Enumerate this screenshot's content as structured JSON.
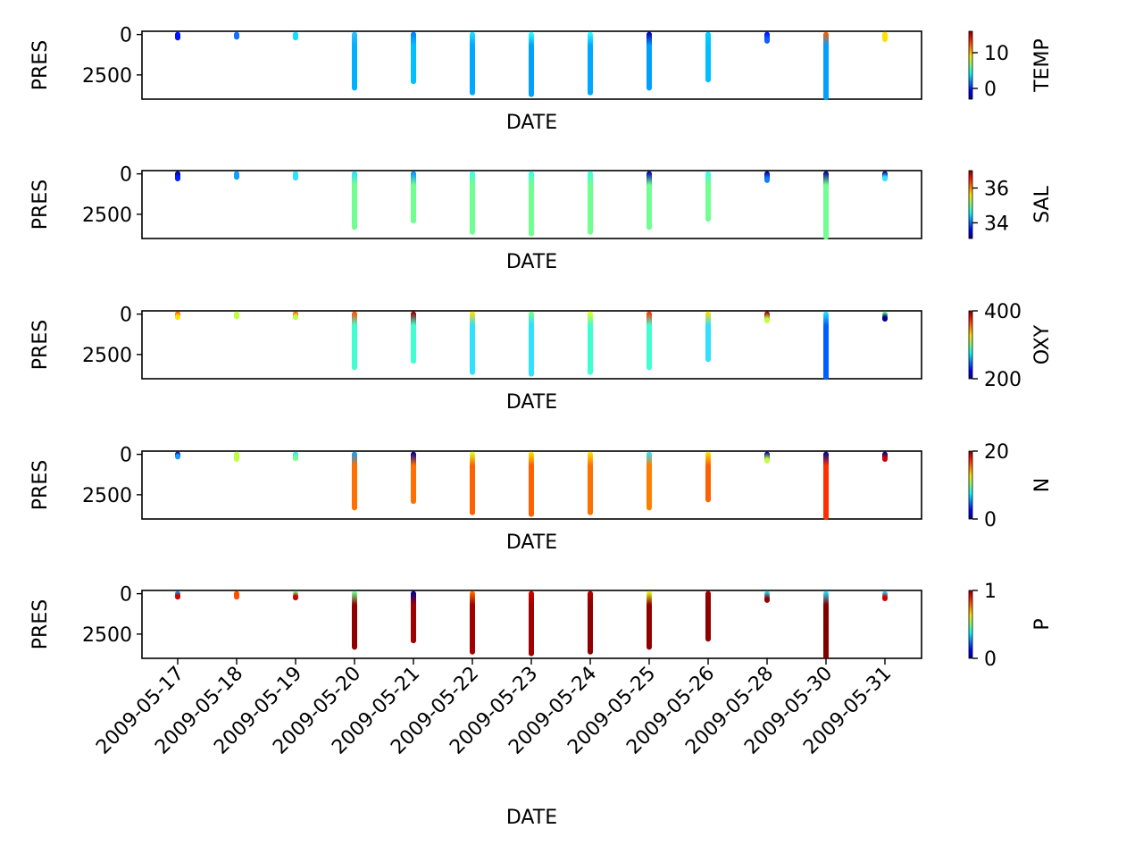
{
  "chart_data": {
    "type": "scatter",
    "shared_x": {
      "label": "DATE",
      "categories": [
        "2009-05-17",
        "2009-05-18",
        "2009-05-19",
        "2009-05-20",
        "2009-05-21",
        "2009-05-22",
        "2009-05-23",
        "2009-05-24",
        "2009-05-25",
        "2009-05-26",
        "2009-05-28",
        "2009-05-30",
        "2009-05-31"
      ]
    },
    "panels": [
      {
        "id": "temp",
        "xlabel": "DATE",
        "ylabel": "PRES",
        "yticks": [
          0,
          2500
        ],
        "ylim": [
          4000,
          -200
        ],
        "color_variable": "TEMP",
        "colorbar_label": "TEMP",
        "colorbar_ticks": [
          0,
          10
        ],
        "colorbar_range": [
          -3,
          16
        ],
        "colormap": "jet",
        "casts": [
          {
            "date": "2009-05-17",
            "max_pres": 200,
            "color_top": "#0010ff",
            "color_deep": "#0010ff"
          },
          {
            "date": "2009-05-18",
            "max_pres": 150,
            "color_top": "#1070ff",
            "color_deep": "#1070ff"
          },
          {
            "date": "2009-05-19",
            "max_pres": 200,
            "color_top": "#10e0ff",
            "color_deep": "#10e0ff"
          },
          {
            "date": "2009-05-20",
            "max_pres": 3300,
            "color_top": "#30c0ff",
            "color_deep": "#00b0ff"
          },
          {
            "date": "2009-05-21",
            "max_pres": 2900,
            "color_top": "#0080ff",
            "color_deep": "#00c0ff"
          },
          {
            "date": "2009-05-22",
            "max_pres": 3600,
            "color_top": "#20e0ff",
            "color_deep": "#00a8ff"
          },
          {
            "date": "2009-05-23",
            "max_pres": 3700,
            "color_top": "#30ffff",
            "color_deep": "#00a0ff"
          },
          {
            "date": "2009-05-24",
            "max_pres": 3600,
            "color_top": "#30ffff",
            "color_deep": "#00a8ff"
          },
          {
            "date": "2009-05-25",
            "max_pres": 3300,
            "color_top": "#0000b0",
            "color_deep": "#00a0ff"
          },
          {
            "date": "2009-05-26",
            "max_pres": 2800,
            "color_top": "#00d0ff",
            "color_deep": "#00c0ff"
          },
          {
            "date": "2009-05-28",
            "max_pres": 400,
            "color_top": "#0010ff",
            "color_deep": "#1060ff"
          },
          {
            "date": "2009-05-30",
            "max_pres": 3900,
            "color_top": "#ff6000",
            "color_deep": "#00a0ff"
          },
          {
            "date": "2009-05-31",
            "max_pres": 300,
            "color_top": "#ffe000",
            "color_deep": "#ffe000"
          }
        ]
      },
      {
        "id": "sal",
        "xlabel": "DATE",
        "ylabel": "PRES",
        "yticks": [
          0,
          2500
        ],
        "ylim": [
          4000,
          -200
        ],
        "color_variable": "SAL",
        "colorbar_label": "SAL",
        "colorbar_ticks": [
          34,
          36
        ],
        "colorbar_range": [
          33.1,
          37.0
        ],
        "colormap": "jet",
        "casts": [
          {
            "date": "2009-05-17",
            "max_pres": 300,
            "color_top": "#000090",
            "color_deep": "#0020ff"
          },
          {
            "date": "2009-05-18",
            "max_pres": 200,
            "color_top": "#10a0ff",
            "color_deep": "#10a0ff"
          },
          {
            "date": "2009-05-19",
            "max_pres": 250,
            "color_top": "#30e0ff",
            "color_deep": "#30e0ff"
          },
          {
            "date": "2009-05-20",
            "max_pres": 3300,
            "color_top": "#30e0ff",
            "color_deep": "#70ff90"
          },
          {
            "date": "2009-05-21",
            "max_pres": 2900,
            "color_top": "#0090ff",
            "color_deep": "#70ff90"
          },
          {
            "date": "2009-05-22",
            "max_pres": 3600,
            "color_top": "#40ffe0",
            "color_deep": "#70ff90"
          },
          {
            "date": "2009-05-23",
            "max_pres": 3700,
            "color_top": "#40ffe0",
            "color_deep": "#70ff90"
          },
          {
            "date": "2009-05-24",
            "max_pres": 3600,
            "color_top": "#40ffe0",
            "color_deep": "#70ff90"
          },
          {
            "date": "2009-05-25",
            "max_pres": 3300,
            "color_top": "#0000b0",
            "color_deep": "#70ff90"
          },
          {
            "date": "2009-05-26",
            "max_pres": 2800,
            "color_top": "#40ffe0",
            "color_deep": "#70ff90"
          },
          {
            "date": "2009-05-28",
            "max_pres": 400,
            "color_top": "#000090",
            "color_deep": "#1080ff"
          },
          {
            "date": "2009-05-30",
            "max_pres": 3900,
            "color_top": "#000090",
            "color_deep": "#70ff90"
          },
          {
            "date": "2009-05-31",
            "max_pres": 300,
            "color_top": "#000090",
            "color_deep": "#30e0ff"
          }
        ]
      },
      {
        "id": "oxy",
        "xlabel": "DATE",
        "ylabel": "PRES",
        "yticks": [
          0,
          2500
        ],
        "ylim": [
          4000,
          -200
        ],
        "color_variable": "OXY",
        "colorbar_label": "OXY",
        "colorbar_ticks": [
          200,
          400
        ],
        "colorbar_range": [
          200,
          400
        ],
        "colormap": "jet",
        "casts": [
          {
            "date": "2009-05-17",
            "max_pres": 200,
            "color_top": "#ff5000",
            "color_deep": "#ffe000"
          },
          {
            "date": "2009-05-18",
            "max_pres": 150,
            "color_top": "#c0ff40",
            "color_deep": "#c0ff40"
          },
          {
            "date": "2009-05-19",
            "max_pres": 200,
            "color_top": "#ff5000",
            "color_deep": "#c0ff40"
          },
          {
            "date": "2009-05-20",
            "max_pres": 3300,
            "color_top": "#ff5000",
            "color_deep": "#40ffd0"
          },
          {
            "date": "2009-05-21",
            "max_pres": 2900,
            "color_top": "#900000",
            "color_deep": "#40ffd0"
          },
          {
            "date": "2009-05-22",
            "max_pres": 3600,
            "color_top": "#ffe000",
            "color_deep": "#30e0ff"
          },
          {
            "date": "2009-05-23",
            "max_pres": 3700,
            "color_top": "#70ff90",
            "color_deep": "#30e0ff"
          },
          {
            "date": "2009-05-24",
            "max_pres": 3600,
            "color_top": "#e0ff20",
            "color_deep": "#40ffd0"
          },
          {
            "date": "2009-05-25",
            "max_pres": 3300,
            "color_top": "#ff3000",
            "color_deep": "#40ffd0"
          },
          {
            "date": "2009-05-26",
            "max_pres": 2800,
            "color_top": "#ffe000",
            "color_deep": "#30e0ff"
          },
          {
            "date": "2009-05-28",
            "max_pres": 400,
            "color_top": "#900000",
            "color_deep": "#c0ff40"
          },
          {
            "date": "2009-05-30",
            "max_pres": 3900,
            "color_top": "#30e0ff",
            "color_deep": "#0060ff"
          },
          {
            "date": "2009-05-31",
            "max_pres": 300,
            "color_top": "#70ff90",
            "color_deep": "#000090"
          }
        ]
      },
      {
        "id": "n",
        "xlabel": "DATE",
        "ylabel": "PRES",
        "yticks": [
          0,
          2500
        ],
        "ylim": [
          4000,
          -200
        ],
        "color_variable": "N",
        "colorbar_label": "N",
        "colorbar_ticks": [
          0,
          20
        ],
        "colorbar_range": [
          0,
          20
        ],
        "colormap": "jet",
        "casts": [
          {
            "date": "2009-05-17",
            "max_pres": 150,
            "color_top": "#000090",
            "color_deep": "#10a0ff"
          },
          {
            "date": "2009-05-18",
            "max_pres": 300,
            "color_top": "#c0ff40",
            "color_deep": "#c0ff40"
          },
          {
            "date": "2009-05-19",
            "max_pres": 250,
            "color_top": "#30e0ff",
            "color_deep": "#70ff90"
          },
          {
            "date": "2009-05-20",
            "max_pres": 3300,
            "color_top": "#10a0ff",
            "color_deep": "#ff7000"
          },
          {
            "date": "2009-05-21",
            "max_pres": 2900,
            "color_top": "#000090",
            "color_deep": "#ff7000"
          },
          {
            "date": "2009-05-22",
            "max_pres": 3600,
            "color_top": "#e0ff20",
            "color_deep": "#ff6000"
          },
          {
            "date": "2009-05-23",
            "max_pres": 3700,
            "color_top": "#ffe000",
            "color_deep": "#ff6000"
          },
          {
            "date": "2009-05-24",
            "max_pres": 3600,
            "color_top": "#ffe000",
            "color_deep": "#ff7000"
          },
          {
            "date": "2009-05-25",
            "max_pres": 3300,
            "color_top": "#30e0ff",
            "color_deep": "#ff8000"
          },
          {
            "date": "2009-05-26",
            "max_pres": 2800,
            "color_top": "#ffe000",
            "color_deep": "#ff6000"
          },
          {
            "date": "2009-05-28",
            "max_pres": 400,
            "color_top": "#000090",
            "color_deep": "#c0ff40"
          },
          {
            "date": "2009-05-30",
            "max_pres": 3900,
            "color_top": "#000090",
            "color_deep": "#ff3000"
          },
          {
            "date": "2009-05-31",
            "max_pres": 300,
            "color_top": "#000090",
            "color_deep": "#d00000"
          }
        ]
      },
      {
        "id": "p",
        "xlabel": "DATE",
        "ylabel": "PRES",
        "yticks": [
          0,
          2500
        ],
        "ylim": [
          4000,
          -200
        ],
        "color_variable": "P",
        "colorbar_label": "P",
        "colorbar_ticks": [
          0,
          1
        ],
        "colorbar_range": [
          0,
          1
        ],
        "colormap": "jet",
        "casts": [
          {
            "date": "2009-05-17",
            "max_pres": 200,
            "color_top": "#10a0ff",
            "color_deep": "#d00000"
          },
          {
            "date": "2009-05-18",
            "max_pres": 200,
            "color_top": "#ff5000",
            "color_deep": "#ff5000"
          },
          {
            "date": "2009-05-19",
            "max_pres": 250,
            "color_top": "#70ff90",
            "color_deep": "#d00000"
          },
          {
            "date": "2009-05-20",
            "max_pres": 3300,
            "color_top": "#70ff90",
            "color_deep": "#900000"
          },
          {
            "date": "2009-05-21",
            "max_pres": 2900,
            "color_top": "#000090",
            "color_deep": "#a00000"
          },
          {
            "date": "2009-05-22",
            "max_pres": 3600,
            "color_top": "#ff7000",
            "color_deep": "#a00000"
          },
          {
            "date": "2009-05-23",
            "max_pres": 3700,
            "color_top": "#d00000",
            "color_deep": "#a00000"
          },
          {
            "date": "2009-05-24",
            "max_pres": 3600,
            "color_top": "#b00000",
            "color_deep": "#900000"
          },
          {
            "date": "2009-05-25",
            "max_pres": 3300,
            "color_top": "#e0ff20",
            "color_deep": "#900000"
          },
          {
            "date": "2009-05-26",
            "max_pres": 2800,
            "color_top": "#a00000",
            "color_deep": "#900000"
          },
          {
            "date": "2009-05-28",
            "max_pres": 400,
            "color_top": "#30e0ff",
            "color_deep": "#900000"
          },
          {
            "date": "2009-05-30",
            "max_pres": 3900,
            "color_top": "#30e0ff",
            "color_deep": "#800000"
          },
          {
            "date": "2009-05-31",
            "max_pres": 300,
            "color_top": "#30e0ff",
            "color_deep": "#d00000"
          }
        ]
      }
    ]
  }
}
